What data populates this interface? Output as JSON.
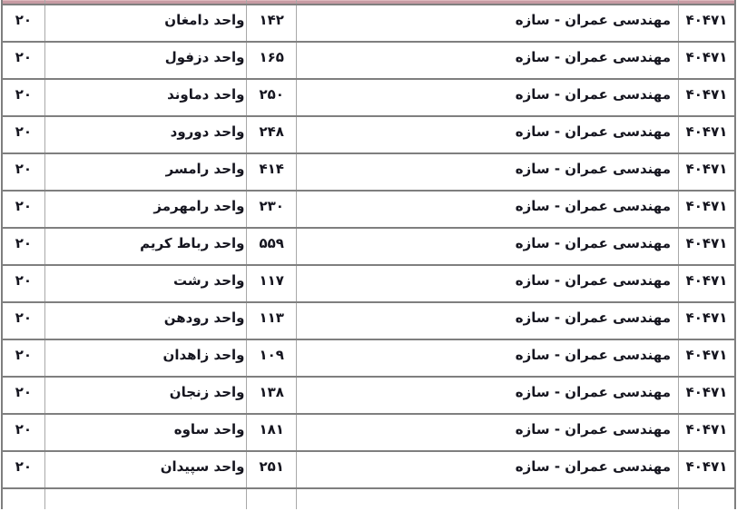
{
  "colors": {
    "header_pink": "#c79ba3",
    "header_pink_light": "#deb9be",
    "grid_line": "#7f7f7f",
    "grid_line_light": "#a8a8a8",
    "text": "#15151f",
    "bg": "#ffffff"
  },
  "table": {
    "rows": [
      {
        "capacity": "۲۰",
        "unit": "واحد دامغان",
        "code": "۱۴۲",
        "field": "مهندسی عمران - سازه",
        "field_code": "۴۰۴۷۱"
      },
      {
        "capacity": "۲۰",
        "unit": "واحد دزفول",
        "code": "۱۶۵",
        "field": "مهندسی عمران - سازه",
        "field_code": "۴۰۴۷۱"
      },
      {
        "capacity": "۲۰",
        "unit": "واحد دماوند",
        "code": "۲۵۰",
        "field": "مهندسی عمران - سازه",
        "field_code": "۴۰۴۷۱"
      },
      {
        "capacity": "۲۰",
        "unit": "واحد دورود",
        "code": "۲۴۸",
        "field": "مهندسی عمران - سازه",
        "field_code": "۴۰۴۷۱"
      },
      {
        "capacity": "۲۰",
        "unit": "واحد رامسر",
        "code": "۴۱۴",
        "field": "مهندسی عمران - سازه",
        "field_code": "۴۰۴۷۱"
      },
      {
        "capacity": "۲۰",
        "unit": "واحد رامهرمز",
        "code": "۲۳۰",
        "field": "مهندسی عمران - سازه",
        "field_code": "۴۰۴۷۱"
      },
      {
        "capacity": "۲۰",
        "unit": "واحد رباط کریم",
        "code": "۵۵۹",
        "field": "مهندسی عمران - سازه",
        "field_code": "۴۰۴۷۱"
      },
      {
        "capacity": "۲۰",
        "unit": "واحد رشت",
        "code": "۱۱۷",
        "field": "مهندسی عمران - سازه",
        "field_code": "۴۰۴۷۱"
      },
      {
        "capacity": "۲۰",
        "unit": "واحد رودهن",
        "code": "۱۱۳",
        "field": "مهندسی عمران - سازه",
        "field_code": "۴۰۴۷۱"
      },
      {
        "capacity": "۲۰",
        "unit": "واحد زاهدان",
        "code": "۱۰۹",
        "field": "مهندسی عمران - سازه",
        "field_code": "۴۰۴۷۱"
      },
      {
        "capacity": "۲۰",
        "unit": "واحد زنجان",
        "code": "۱۳۸",
        "field": "مهندسی عمران - سازه",
        "field_code": "۴۰۴۷۱"
      },
      {
        "capacity": "۲۰",
        "unit": "واحد ساوه",
        "code": "۱۸۱",
        "field": "مهندسی عمران - سازه",
        "field_code": "۴۰۴۷۱"
      },
      {
        "capacity": "۲۰",
        "unit": "واحد سپیدان",
        "code": "۲۵۱",
        "field": "مهندسی عمران - سازه",
        "field_code": "۴۰۴۷۱"
      }
    ]
  }
}
